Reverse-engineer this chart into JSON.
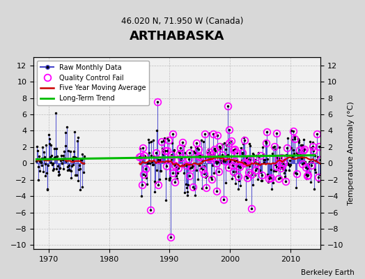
{
  "title": "ARTHABASKA",
  "subtitle": "46.020 N, 71.950 W (Canada)",
  "credit": "Berkeley Earth",
  "ylabel_right": "Temperature Anomaly (°C)",
  "xlim": [
    1967.5,
    2015
  ],
  "ylim": [
    -10.5,
    13
  ],
  "yticks": [
    -10,
    -8,
    -6,
    -4,
    -2,
    0,
    2,
    4,
    6,
    8,
    10,
    12
  ],
  "xticks": [
    1970,
    1980,
    1990,
    2000,
    2010
  ],
  "plot_bg": "#f0f0f0",
  "fig_bg": "#d8d8d8",
  "stem_color": "#4444cc",
  "dot_color": "#000000",
  "qc_color": "#ff00ff",
  "five_yr_color": "#cc0000",
  "trend_color": "#00bb00"
}
